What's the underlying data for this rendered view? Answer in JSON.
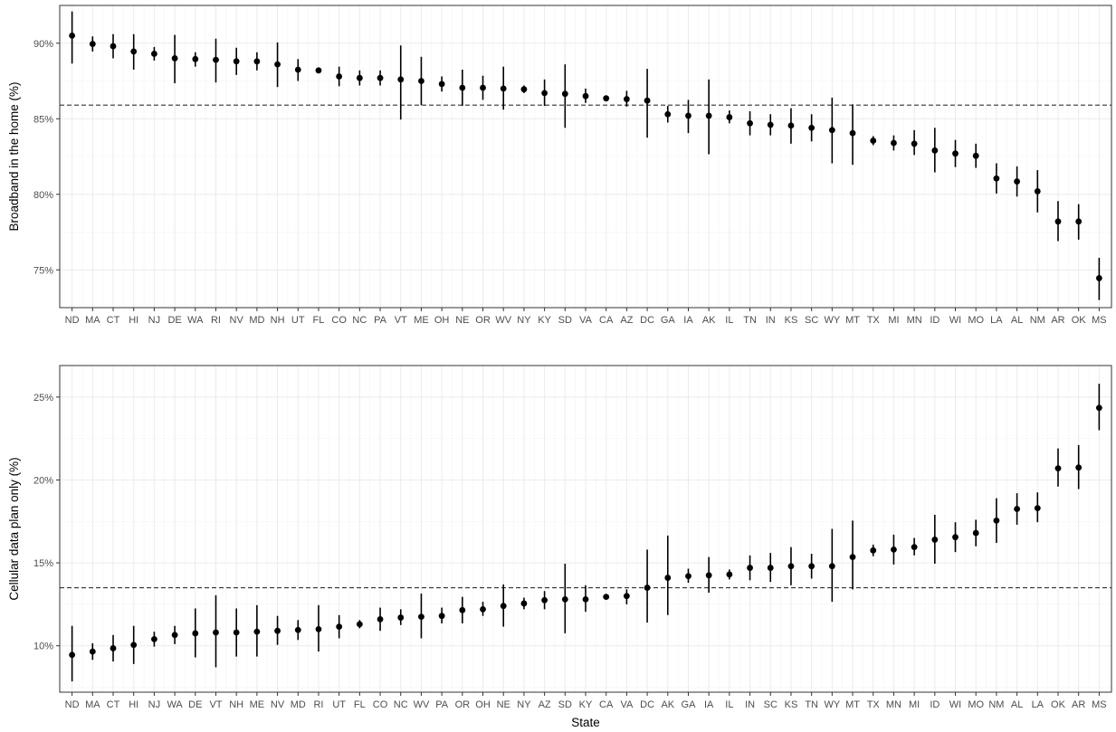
{
  "chart_data": [
    {
      "type": "scatter",
      "ylabel": "Broadband in the home (%)",
      "xlabel": "",
      "ylim": [
        72.5,
        92.5
      ],
      "yticks": [
        75,
        80,
        85,
        90
      ],
      "ytick_labels": [
        "75%",
        "80%",
        "85%",
        "90%"
      ],
      "reference_line": 85.9,
      "grid": true,
      "categories": [
        "ND",
        "MA",
        "CT",
        "HI",
        "NJ",
        "DE",
        "WA",
        "RI",
        "NV",
        "MD",
        "NH",
        "UT",
        "FL",
        "CO",
        "NC",
        "PA",
        "VT",
        "ME",
        "OH",
        "NE",
        "OR",
        "WV",
        "NY",
        "KY",
        "SD",
        "VA",
        "CA",
        "AZ",
        "DC",
        "GA",
        "IA",
        "AK",
        "IL",
        "TN",
        "IN",
        "KS",
        "SC",
        "WY",
        "MT",
        "TX",
        "MI",
        "MN",
        "ID",
        "WI",
        "MO",
        "LA",
        "AL",
        "NM",
        "AR",
        "OK",
        "MS"
      ],
      "values": [
        90.5,
        89.95,
        89.8,
        89.45,
        89.3,
        89.0,
        88.95,
        88.9,
        88.8,
        88.8,
        88.6,
        88.25,
        88.2,
        87.8,
        87.7,
        87.7,
        87.6,
        87.5,
        87.3,
        87.05,
        87.05,
        87.0,
        86.95,
        86.7,
        86.65,
        86.5,
        86.35,
        86.3,
        86.2,
        85.3,
        85.2,
        85.2,
        85.1,
        84.7,
        84.6,
        84.55,
        84.4,
        84.25,
        84.05,
        83.55,
        83.4,
        83.35,
        82.9,
        82.7,
        82.55,
        81.05,
        80.85,
        80.2,
        78.2,
        78.2,
        74.45
      ],
      "lower": [
        88.65,
        89.45,
        89.0,
        88.25,
        88.85,
        87.35,
        88.45,
        87.4,
        87.9,
        88.2,
        87.1,
        87.5,
        88.1,
        87.15,
        87.2,
        87.2,
        84.95,
        85.9,
        86.8,
        85.85,
        86.25,
        85.6,
        86.7,
        85.85,
        84.4,
        86.05,
        86.3,
        85.8,
        83.75,
        84.75,
        84.05,
        82.65,
        84.7,
        83.9,
        83.9,
        83.35,
        83.5,
        82.05,
        81.95,
        83.25,
        82.9,
        82.6,
        81.45,
        81.8,
        81.75,
        80.05,
        79.85,
        78.8,
        76.9,
        77.0,
        73.0
      ],
      "upper": [
        92.1,
        90.45,
        90.6,
        90.6,
        89.75,
        90.55,
        89.4,
        90.3,
        89.7,
        89.4,
        90.05,
        88.95,
        88.3,
        88.45,
        88.2,
        88.2,
        89.85,
        89.1,
        87.8,
        88.25,
        87.85,
        88.45,
        87.2,
        87.6,
        88.6,
        87.0,
        86.4,
        86.85,
        88.3,
        85.85,
        86.25,
        87.6,
        85.55,
        85.5,
        85.3,
        85.7,
        85.3,
        86.4,
        85.95,
        83.85,
        83.9,
        84.25,
        84.4,
        83.6,
        83.35,
        82.05,
        81.85,
        81.6,
        79.55,
        79.35,
        75.8
      ]
    },
    {
      "type": "scatter",
      "ylabel": "Cellular data plan only (%)",
      "xlabel": "State",
      "ylim": [
        7.2,
        26.9
      ],
      "yticks": [
        10,
        15,
        20,
        25
      ],
      "ytick_labels": [
        "10%",
        "15%",
        "20%",
        "25%"
      ],
      "reference_line": 13.5,
      "grid": true,
      "categories": [
        "ND",
        "MA",
        "CT",
        "HI",
        "NJ",
        "WA",
        "DE",
        "VT",
        "NH",
        "ME",
        "NV",
        "MD",
        "RI",
        "UT",
        "FL",
        "CO",
        "NC",
        "WV",
        "PA",
        "OR",
        "OH",
        "NE",
        "NY",
        "AZ",
        "SD",
        "KY",
        "CA",
        "VA",
        "DC",
        "AK",
        "GA",
        "IA",
        "IL",
        "IN",
        "SC",
        "KS",
        "TN",
        "WY",
        "MT",
        "TX",
        "MN",
        "MI",
        "ID",
        "WI",
        "MO",
        "NM",
        "AL",
        "LA",
        "OK",
        "AR",
        "MS"
      ],
      "values": [
        9.45,
        9.65,
        9.85,
        10.05,
        10.4,
        10.65,
        10.75,
        10.8,
        10.8,
        10.85,
        10.9,
        10.95,
        11.0,
        11.15,
        11.3,
        11.6,
        11.7,
        11.75,
        11.8,
        12.15,
        12.2,
        12.4,
        12.55,
        12.75,
        12.8,
        12.8,
        12.95,
        13.0,
        13.5,
        14.1,
        14.2,
        14.25,
        14.3,
        14.7,
        14.7,
        14.8,
        14.8,
        14.8,
        15.35,
        15.75,
        15.8,
        15.95,
        16.4,
        16.55,
        16.8,
        17.55,
        18.25,
        18.3,
        20.7,
        20.75,
        24.35
      ],
      "lower": [
        7.85,
        9.15,
        9.05,
        8.9,
        9.95,
        10.1,
        9.3,
        8.7,
        9.35,
        9.35,
        10.05,
        10.35,
        9.65,
        10.45,
        11.05,
        10.9,
        11.25,
        10.45,
        11.35,
        11.35,
        11.8,
        11.15,
        12.2,
        12.2,
        10.75,
        12.05,
        12.8,
        12.5,
        11.4,
        11.85,
        13.8,
        13.2,
        14.0,
        13.95,
        13.85,
        13.65,
        14.05,
        12.65,
        13.4,
        15.4,
        14.9,
        15.45,
        14.95,
        15.65,
        16.0,
        16.2,
        17.3,
        17.45,
        19.6,
        19.45,
        23.0
      ],
      "upper": [
        11.2,
        10.15,
        10.65,
        11.2,
        10.85,
        11.2,
        12.25,
        13.05,
        12.25,
        12.45,
        11.8,
        11.55,
        12.45,
        11.85,
        11.55,
        12.3,
        12.2,
        13.15,
        12.3,
        12.95,
        12.65,
        13.7,
        12.9,
        13.3,
        14.95,
        13.65,
        13.1,
        13.4,
        15.8,
        16.65,
        14.65,
        15.35,
        14.6,
        15.45,
        15.6,
        15.95,
        15.55,
        17.05,
        17.55,
        16.1,
        16.7,
        16.5,
        17.9,
        17.45,
        17.6,
        18.9,
        19.2,
        19.25,
        21.9,
        22.1,
        25.8
      ]
    }
  ]
}
